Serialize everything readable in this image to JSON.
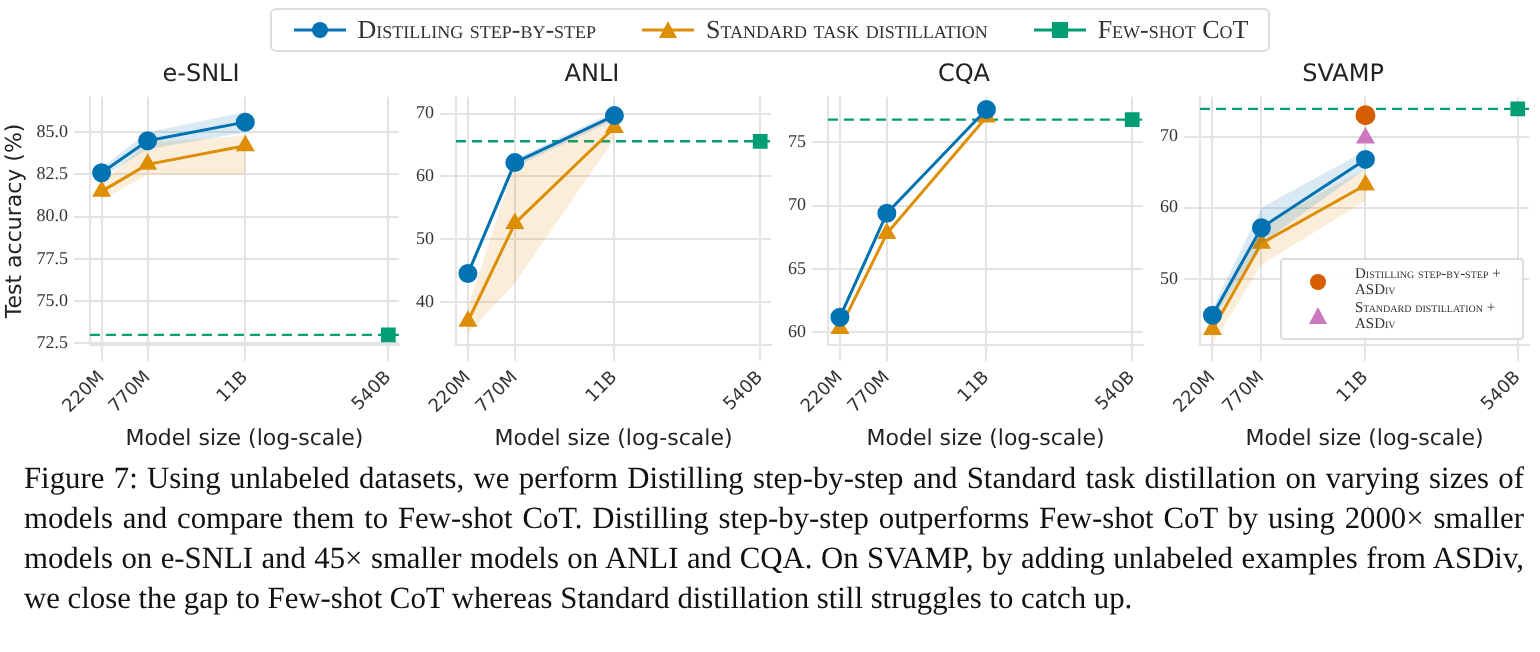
{
  "chart_data": [
    {
      "type": "line",
      "title": "e-SNLI",
      "xlabel": "Model size (log-scale)",
      "ylabel": "Test accuracy (%)",
      "log": "x",
      "grid": true,
      "legend": "top",
      "xlim": [
        160000000,
        720000000000
      ],
      "xticks": [
        {
          "value": 220000000,
          "label": "220M"
        },
        {
          "value": 770000000,
          "label": "770M"
        },
        {
          "value": 11000000000,
          "label": "11B"
        },
        {
          "value": 540000000000,
          "label": "540B"
        }
      ],
      "ylim": [
        72.4,
        87.1
      ],
      "yticks": [
        {
          "value": 72.5,
          "label": "72.5"
        },
        {
          "value": 75,
          "label": "75.0"
        },
        {
          "value": 77.5,
          "label": "77.5"
        },
        {
          "value": 80,
          "label": "80.0"
        },
        {
          "value": 82.5,
          "label": "82.5"
        },
        {
          "value": 85,
          "label": "85.0"
        }
      ],
      "ref_lines": [
        {
          "axis": "y",
          "value": 73.0,
          "color": "#029e73",
          "line_style": "dashed"
        }
      ],
      "series": [
        {
          "name": "Distilling step-by-step",
          "color": "#0173b2",
          "marker": "circle",
          "x": [
            220000000,
            770000000,
            11000000000
          ],
          "values": [
            82.6,
            84.5,
            85.6
          ],
          "lower": [
            82.3,
            84.0,
            85.0
          ],
          "upper": [
            82.9,
            85.0,
            86.2
          ]
        },
        {
          "name": "Standard task distillation",
          "color": "#de8f05",
          "marker": "triangle",
          "x": [
            220000000,
            770000000,
            11000000000
          ],
          "values": [
            81.5,
            83.1,
            84.2
          ],
          "lower": [
            81.0,
            82.5,
            82.5
          ],
          "upper": [
            82.0,
            84.4,
            84.8
          ]
        },
        {
          "name": "Few-shot CoT",
          "type": "scatter",
          "color": "#029e73",
          "marker": "square",
          "x": [
            540000000000
          ],
          "values": [
            73.0
          ]
        }
      ]
    },
    {
      "type": "line",
      "title": "ANLI",
      "xlabel": "Model size (log-scale)",
      "log": "x",
      "grid": true,
      "xlim": [
        160000000,
        720000000000
      ],
      "xticks": [
        {
          "value": 220000000,
          "label": "220M"
        },
        {
          "value": 770000000,
          "label": "770M"
        },
        {
          "value": 11000000000,
          "label": "11B"
        },
        {
          "value": 540000000000,
          "label": "540B"
        }
      ],
      "ylim": [
        33.1,
        72.7
      ],
      "yticks": [
        40,
        50,
        60,
        70
      ],
      "ref_lines": [
        {
          "axis": "y",
          "value": 65.6,
          "color": "#029e73",
          "line_style": "dashed"
        }
      ],
      "series": [
        {
          "color": "#0173b2",
          "marker": "circle",
          "x": [
            220000000,
            770000000,
            11000000000
          ],
          "values": [
            44.5,
            62.2,
            69.7
          ],
          "lower": [
            44.0,
            61.5,
            69.0
          ],
          "upper": [
            45.0,
            62.8,
            70.3
          ]
        },
        {
          "color": "#de8f05",
          "marker": "triangle",
          "x": [
            220000000,
            770000000,
            11000000000
          ],
          "values": [
            36.9,
            52.5,
            67.8
          ],
          "lower": [
            35.0,
            43.0,
            66.0
          ],
          "upper": [
            39.0,
            62.0,
            70.0
          ]
        },
        {
          "type": "scatter",
          "color": "#029e73",
          "marker": "square",
          "x": [
            540000000000
          ],
          "values": [
            65.6
          ]
        }
      ]
    },
    {
      "type": "line",
      "title": "CQA",
      "xlabel": "Model size (log-scale)",
      "log": "x",
      "grid": true,
      "xlim": [
        160000000,
        720000000000
      ],
      "xticks": [
        {
          "value": 220000000,
          "label": "220M"
        },
        {
          "value": 770000000,
          "label": "770M"
        },
        {
          "value": 11000000000,
          "label": "11B"
        },
        {
          "value": 540000000000,
          "label": "540B"
        }
      ],
      "ylim": [
        59.0,
        78.6
      ],
      "yticks": [
        60,
        65,
        70,
        75
      ],
      "ref_lines": [
        {
          "axis": "y",
          "value": 76.8,
          "color": "#029e73",
          "line_style": "dashed"
        }
      ],
      "series": [
        {
          "color": "#0173b2",
          "marker": "circle",
          "x": [
            220000000,
            770000000,
            11000000000
          ],
          "values": [
            61.2,
            69.4,
            77.6
          ]
        },
        {
          "color": "#de8f05",
          "marker": "triangle",
          "x": [
            220000000,
            770000000,
            11000000000
          ],
          "values": [
            60.3,
            67.8,
            77.0
          ]
        },
        {
          "type": "scatter",
          "color": "#029e73",
          "marker": "square",
          "x": [
            540000000000
          ],
          "values": [
            76.8
          ]
        }
      ]
    },
    {
      "type": "line",
      "title": "SVAMP",
      "xlabel": "Model size (log-scale)",
      "log": "x",
      "grid": true,
      "legend": "bottom right",
      "xlim": [
        160000000,
        720000000000
      ],
      "xticks": [
        {
          "value": 220000000,
          "label": "220M"
        },
        {
          "value": 770000000,
          "label": "770M"
        },
        {
          "value": 11000000000,
          "label": "11B"
        },
        {
          "value": 540000000000,
          "label": "540B"
        }
      ],
      "ylim": [
        40.7,
        75.6
      ],
      "yticks": [
        50,
        60,
        70
      ],
      "ref_lines": [
        {
          "axis": "y",
          "value": 73.9,
          "color": "#029e73",
          "line_style": "dashed"
        }
      ],
      "series": [
        {
          "color": "#0173b2",
          "marker": "circle",
          "x": [
            220000000,
            770000000,
            11000000000
          ],
          "values": [
            44.9,
            57.2,
            66.8
          ],
          "lower": [
            44.0,
            55.0,
            65.5
          ],
          "upper": [
            45.8,
            60.0,
            68.0
          ]
        },
        {
          "color": "#de8f05",
          "marker": "triangle",
          "x": [
            220000000,
            770000000,
            11000000000
          ],
          "values": [
            42.9,
            55.0,
            63.2
          ],
          "lower": [
            40.8,
            52.0,
            61.0
          ],
          "upper": [
            45.0,
            57.5,
            65.5
          ]
        },
        {
          "type": "scatter",
          "color": "#029e73",
          "marker": "square",
          "x": [
            540000000000
          ],
          "values": [
            73.9
          ]
        },
        {
          "name": "Distilling step-by-step + ASDiv",
          "type": "scatter",
          "color": "#d55e00",
          "marker": "circle",
          "x": [
            11000000000
          ],
          "values": [
            73.0
          ]
        },
        {
          "name": "Standard distillation + ASDiv",
          "type": "scatter",
          "color": "#cc78bc",
          "marker": "triangle",
          "x": [
            11000000000
          ],
          "values": [
            69.8
          ]
        }
      ],
      "annotations": [
        "Figure 7: Using unlabeled datasets, we perform Distilling step-by-step and Standard task distillation on varying sizes of models and compare them to Few-shot CoT. Distilling step-by-step outperforms Few-shot CoT by using 2000× smaller models on e-SNLI and 45× smaller models on ANLI and CQA. On SVAMP, by adding unlabeled examples from ASDiv, we close the gap to Few-shot CoT whereas Standard distillation still struggles to catch up."
      ]
    }
  ]
}
